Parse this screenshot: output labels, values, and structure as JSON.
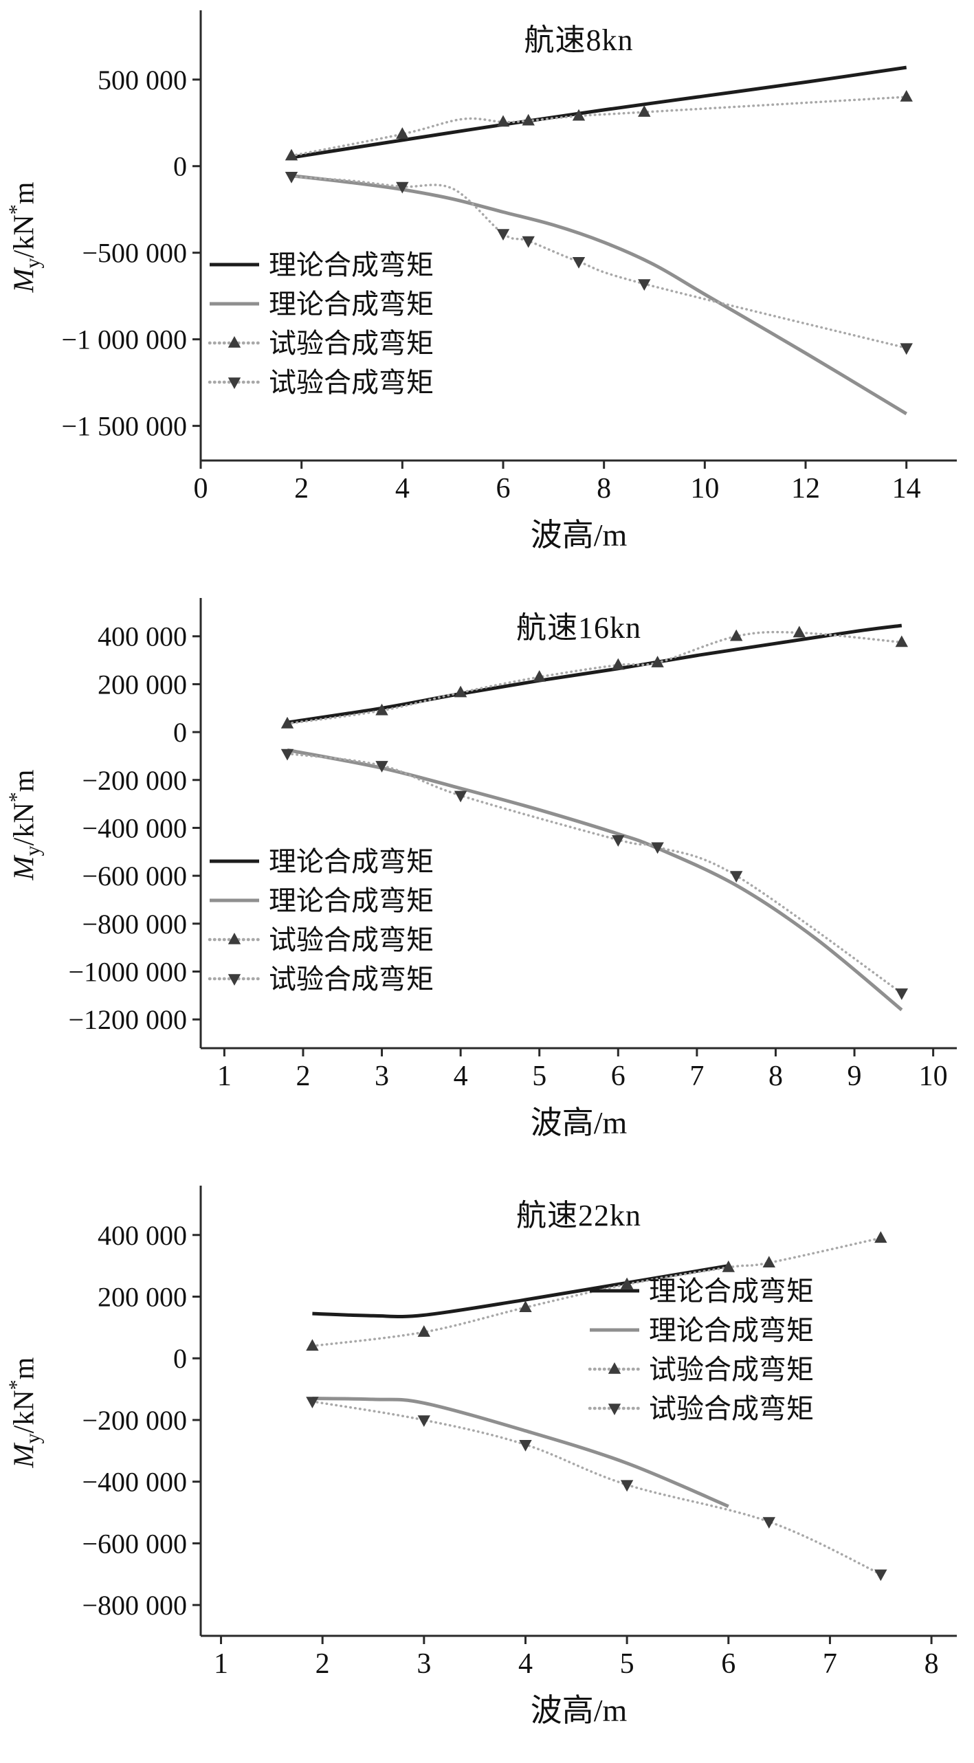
{
  "chart_data": [
    {
      "type": "line",
      "title": "航速8kn",
      "xlabel": "波高/m",
      "ylabel": {
        "var": "M",
        "sub": "y",
        "mid": "/kN",
        "sup": "*",
        "end": "m"
      },
      "xlim": [
        0,
        15
      ],
      "ylim": [
        -1700000,
        900000
      ],
      "grid": false,
      "legend_position": "inside-left-lower",
      "xticks": [
        {
          "v": 0,
          "label": "0"
        },
        {
          "v": 2,
          "label": "2"
        },
        {
          "v": 4,
          "label": "4"
        },
        {
          "v": 6,
          "label": "6"
        },
        {
          "v": 8,
          "label": "8"
        },
        {
          "v": 10,
          "label": "10"
        },
        {
          "v": 12,
          "label": "12"
        },
        {
          "v": 14,
          "label": "14"
        }
      ],
      "yticks": [
        {
          "v": 500000,
          "label": "500 000"
        },
        {
          "v": 0,
          "label": "0"
        },
        {
          "v": -500000,
          "label": "−500 000"
        },
        {
          "v": -1000000,
          "label": "−1 000 000"
        },
        {
          "v": -1500000,
          "label": "−1 500 000"
        }
      ],
      "series": [
        {
          "label": "理论合成弯矩",
          "color": "#1c1c1c",
          "width": 5,
          "dash": null,
          "marker": null,
          "points": [
            [
              1.8,
              50000
            ],
            [
              4,
              150000
            ],
            [
              6,
              240000
            ],
            [
              8,
              325000
            ],
            [
              10,
              405000
            ],
            [
              12,
              485000
            ],
            [
              14,
              570000
            ]
          ]
        },
        {
          "label": "理论合成弯矩",
          "color": "#8f8f8f",
          "width": 5,
          "dash": null,
          "marker": null,
          "points": [
            [
              1.8,
              -55000
            ],
            [
              3,
              -95000
            ],
            [
              4,
              -135000
            ],
            [
              5,
              -190000
            ],
            [
              6,
              -265000
            ],
            [
              7,
              -340000
            ],
            [
              8,
              -440000
            ],
            [
              9,
              -570000
            ],
            [
              10,
              -740000
            ],
            [
              12,
              -1080000
            ],
            [
              14,
              -1430000
            ]
          ]
        },
        {
          "label": "试验合成弯矩",
          "color": "#a8a8a8",
          "width": 3.5,
          "dash": "0.5 6.5",
          "marker": "triangle-up",
          "marker_color": "#3c3c3c",
          "points": [
            [
              1.8,
              60000
            ],
            [
              4,
              185000
            ],
            [
              5.2,
              272000
            ],
            [
              6,
              255000
            ],
            [
              6.5,
              262000
            ],
            [
              7.5,
              290000
            ],
            [
              8.8,
              312000
            ],
            [
              14,
              400000
            ]
          ],
          "marker_points": [
            [
              1.8,
              60000
            ],
            [
              4,
              185000
            ],
            [
              6,
              255000
            ],
            [
              6.5,
              262000
            ],
            [
              7.5,
              290000
            ],
            [
              8.8,
              312000
            ],
            [
              14,
              400000
            ]
          ]
        },
        {
          "label": "试验合成弯矩",
          "color": "#a8a8a8",
          "width": 3.5,
          "dash": "0.5 6.5",
          "marker": "triangle-down",
          "marker_color": "#3c3c3c",
          "points": [
            [
              1.8,
              -60000
            ],
            [
              3,
              -85000
            ],
            [
              4,
              -118000
            ],
            [
              5,
              -130000
            ],
            [
              6,
              -390000
            ],
            [
              6.5,
              -432000
            ],
            [
              7.5,
              -552000
            ],
            [
              8.8,
              -680000
            ],
            [
              14,
              -1050000
            ]
          ],
          "marker_points": [
            [
              1.8,
              -60000
            ],
            [
              4,
              -118000
            ],
            [
              6,
              -390000
            ],
            [
              6.5,
              -432000
            ],
            [
              7.5,
              -552000
            ],
            [
              8.8,
              -680000
            ],
            [
              14,
              -1050000
            ]
          ]
        }
      ]
    },
    {
      "type": "line",
      "title": "航速16kn",
      "xlabel": "波高/m",
      "ylabel": {
        "var": "M",
        "sub": "y",
        "mid": "/kN",
        "sup": "*",
        "end": "m"
      },
      "xlim": [
        0.7,
        10.3
      ],
      "ylim": [
        -1320000,
        560000
      ],
      "grid": false,
      "legend_position": "inside-left-bottom",
      "xticks": [
        {
          "v": 1,
          "label": "1"
        },
        {
          "v": 2,
          "label": "2"
        },
        {
          "v": 3,
          "label": "3"
        },
        {
          "v": 4,
          "label": "4"
        },
        {
          "v": 5,
          "label": "5"
        },
        {
          "v": 6,
          "label": "6"
        },
        {
          "v": 7,
          "label": "7"
        },
        {
          "v": 8,
          "label": "8"
        },
        {
          "v": 9,
          "label": "9"
        },
        {
          "v": 10,
          "label": "10"
        }
      ],
      "yticks": [
        {
          "v": 400000,
          "label": "400 000"
        },
        {
          "v": 200000,
          "label": "200 000"
        },
        {
          "v": 0,
          "label": "0"
        },
        {
          "v": -200000,
          "label": "−200 000"
        },
        {
          "v": -400000,
          "label": "−400 000"
        },
        {
          "v": -600000,
          "label": "−600 000"
        },
        {
          "v": -800000,
          "label": "−800 000"
        },
        {
          "v": -1000000,
          "label": "−1000 000"
        },
        {
          "v": -1200000,
          "label": "−1200 000"
        }
      ],
      "series": [
        {
          "label": "理论合成弯矩",
          "color": "#1c1c1c",
          "width": 5,
          "dash": null,
          "marker": null,
          "points": [
            [
              1.8,
              40000
            ],
            [
              3,
              100000
            ],
            [
              4,
              160000
            ],
            [
              5,
              215000
            ],
            [
              6,
              265000
            ],
            [
              7,
              320000
            ],
            [
              8,
              370000
            ],
            [
              9,
              420000
            ],
            [
              9.6,
              445000
            ]
          ]
        },
        {
          "label": "理论合成弯矩",
          "color": "#8f8f8f",
          "width": 5,
          "dash": null,
          "marker": null,
          "points": [
            [
              1.8,
              -75000
            ],
            [
              3,
              -150000
            ],
            [
              4,
              -235000
            ],
            [
              5,
              -325000
            ],
            [
              6,
              -425000
            ],
            [
              6.5,
              -485000
            ],
            [
              7.5,
              -640000
            ],
            [
              8.5,
              -860000
            ],
            [
              9.6,
              -1160000
            ]
          ]
        },
        {
          "label": "试验合成弯矩",
          "color": "#a8a8a8",
          "width": 3.5,
          "dash": "0.5 6.5",
          "marker": "triangle-up",
          "marker_color": "#3c3c3c",
          "points": [
            [
              1.8,
              35000
            ],
            [
              3,
              90000
            ],
            [
              4,
              165000
            ],
            [
              5,
              230000
            ],
            [
              6,
              280000
            ],
            [
              6.5,
              290000
            ],
            [
              7.5,
              400000
            ],
            [
              8.3,
              415000
            ],
            [
              9.6,
              375000
            ]
          ]
        },
        {
          "label": "试验合成弯矩",
          "color": "#a8a8a8",
          "width": 3.5,
          "dash": "0.5 6.5",
          "marker": "triangle-down",
          "marker_color": "#3c3c3c",
          "points": [
            [
              1.8,
              -90000
            ],
            [
              3,
              -140000
            ],
            [
              4,
              -265000
            ],
            [
              6,
              -450000
            ],
            [
              6.5,
              -480000
            ],
            [
              7.5,
              -600000
            ],
            [
              9.6,
              -1090000
            ]
          ]
        }
      ]
    },
    {
      "type": "line",
      "title": "航速22kn",
      "xlabel": "波高/m",
      "ylabel": {
        "var": "M",
        "sub": "y",
        "mid": "/kN",
        "sup": "*",
        "end": "m"
      },
      "xlim": [
        0.8,
        8.25
      ],
      "ylim": [
        -900000,
        560000
      ],
      "grid": false,
      "legend_position": "inside-right-middle",
      "xticks": [
        {
          "v": 1,
          "label": "1"
        },
        {
          "v": 2,
          "label": "2"
        },
        {
          "v": 3,
          "label": "3"
        },
        {
          "v": 4,
          "label": "4"
        },
        {
          "v": 5,
          "label": "5"
        },
        {
          "v": 6,
          "label": "6"
        },
        {
          "v": 7,
          "label": "7"
        },
        {
          "v": 8,
          "label": "8"
        }
      ],
      "yticks": [
        {
          "v": 400000,
          "label": "400 000"
        },
        {
          "v": 200000,
          "label": "200 000"
        },
        {
          "v": 0,
          "label": "0"
        },
        {
          "v": -200000,
          "label": "−200 000"
        },
        {
          "v": -400000,
          "label": "−400 000"
        },
        {
          "v": -600000,
          "label": "−600 000"
        },
        {
          "v": -800000,
          "label": "−800 000"
        }
      ],
      "series": [
        {
          "label": "理论合成弯矩",
          "color": "#1c1c1c",
          "width": 5,
          "dash": null,
          "marker": null,
          "points": [
            [
              1.9,
              145000
            ],
            [
              2.5,
              138000
            ],
            [
              3,
              140000
            ],
            [
              4,
              190000
            ],
            [
              5,
              245000
            ],
            [
              6,
              300000
            ]
          ]
        },
        {
          "label": "理论合成弯矩",
          "color": "#8f8f8f",
          "width": 5,
          "dash": null,
          "marker": null,
          "points": [
            [
              1.9,
              -130000
            ],
            [
              2.5,
              -133000
            ],
            [
              3,
              -145000
            ],
            [
              4,
              -235000
            ],
            [
              5,
              -340000
            ],
            [
              6,
              -480000
            ]
          ]
        },
        {
          "label": "试验合成弯矩",
          "color": "#a8a8a8",
          "width": 3.5,
          "dash": "0.5 6.5",
          "marker": "triangle-up",
          "marker_color": "#3c3c3c",
          "points": [
            [
              1.9,
              40000
            ],
            [
              3,
              85000
            ],
            [
              4,
              165000
            ],
            [
              5,
              240000
            ],
            [
              6,
              295000
            ],
            [
              6.4,
              310000
            ],
            [
              7.5,
              390000
            ]
          ]
        },
        {
          "label": "试验合成弯矩",
          "color": "#a8a8a8",
          "width": 3.5,
          "dash": "0.5 6.5",
          "marker": "triangle-down",
          "marker_color": "#3c3c3c",
          "points": [
            [
              1.9,
              -140000
            ],
            [
              3,
              -200000
            ],
            [
              4,
              -280000
            ],
            [
              5,
              -410000
            ],
            [
              6.4,
              -530000
            ],
            [
              7.5,
              -700000
            ]
          ]
        }
      ]
    }
  ],
  "colors": {
    "theory_line": "#1c1c1c",
    "theory_line_gray": "#8f8f8f",
    "experiment_dotted": "#a8a8a8",
    "marker": "#3c3c3c",
    "axis": "#2a2a2a",
    "text": "#111111",
    "background": "#ffffff"
  }
}
